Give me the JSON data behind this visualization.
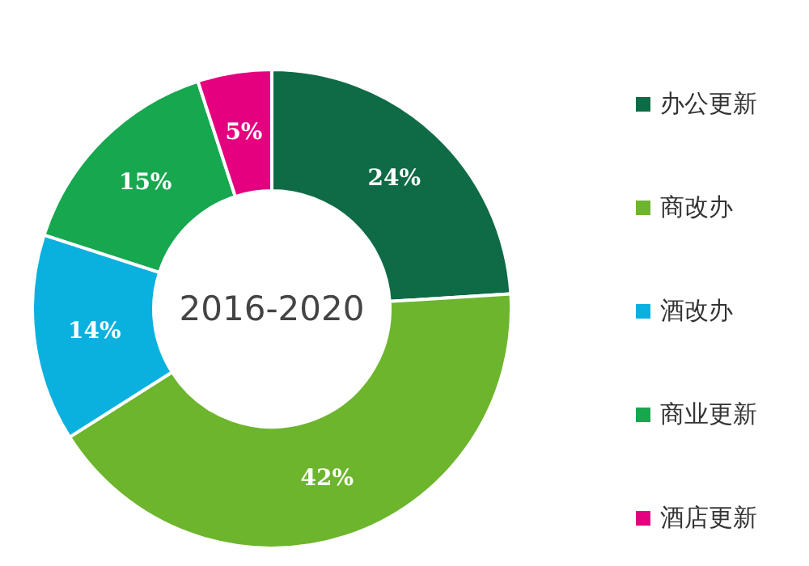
{
  "chart_data": {
    "type": "donut",
    "title": "2016-2020",
    "categories": [
      "办公更新",
      "商改办",
      "酒改办",
      "商业更新",
      "酒店更新"
    ],
    "values": [
      24,
      42,
      14,
      15,
      5
    ],
    "value_labels": [
      "24%",
      "42%",
      "14%",
      "15%",
      "5%"
    ],
    "colors": [
      "#0e6b45",
      "#6cb52d",
      "#0ab1df",
      "#17a74f",
      "#e4007f"
    ],
    "legend": "right"
  }
}
